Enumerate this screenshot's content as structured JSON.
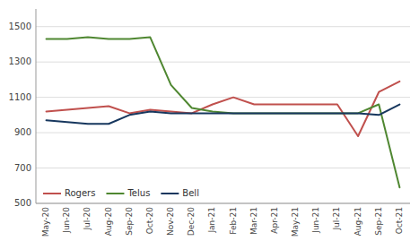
{
  "chart_data": {
    "type": "line",
    "categories": [
      "May-20",
      "Jun-20",
      "Jul-20",
      "Aug-20",
      "Sep-20",
      "Oct-20",
      "Nov-20",
      "Dec-20",
      "Jan-21",
      "Feb-21",
      "Mar-21",
      "Apr-21",
      "May-21",
      "Jun-21",
      "Jul-21",
      "Aug-21",
      "Sep-21",
      "Oct-21"
    ],
    "series": [
      {
        "name": "Rogers",
        "color": "#C0504D",
        "values": [
          1020,
          1030,
          1040,
          1050,
          1010,
          1030,
          1020,
          1010,
          1060,
          1100,
          1060,
          1060,
          1060,
          1060,
          1060,
          880,
          1130,
          1190
        ]
      },
      {
        "name": "Telus",
        "color": "#4F8731",
        "values": [
          1430,
          1430,
          1440,
          1430,
          1430,
          1440,
          1170,
          1040,
          1020,
          1010,
          1010,
          1010,
          1010,
          1010,
          1010,
          1010,
          1060,
          590
        ]
      },
      {
        "name": "Bell",
        "color": "#17375E",
        "values": [
          970,
          960,
          950,
          950,
          1000,
          1020,
          1010,
          1010,
          1010,
          1010,
          1010,
          1010,
          1010,
          1010,
          1010,
          1010,
          1000,
          1060
        ]
      }
    ],
    "ylim": [
      500,
      1600
    ],
    "yticks": [
      500,
      700,
      900,
      1100,
      1300,
      1500
    ],
    "grid": true,
    "legend": "lower left"
  }
}
